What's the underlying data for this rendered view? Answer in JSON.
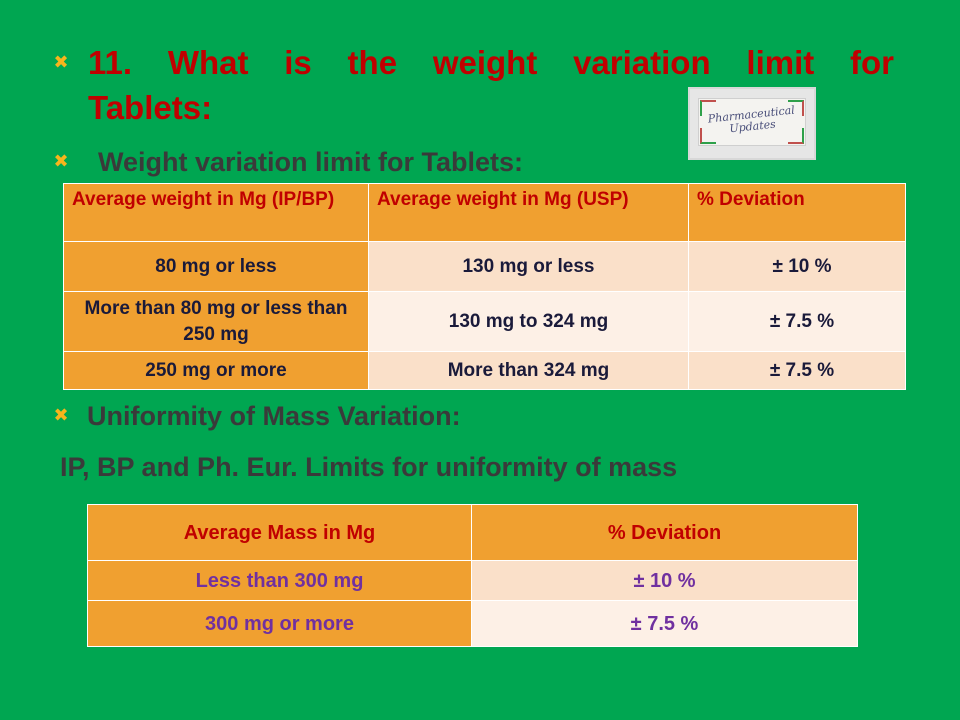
{
  "slide": {
    "title_line1": "11. What is the weight variation limit for",
    "title_line2": "Tablets:",
    "bullet_glyph": "✖",
    "heading_weight": "Weight variation limit for Tablets:",
    "heading_uniformity": "Uniformity of Mass Variation:",
    "subheading_limits": "IP, BP and Ph. Eur. Limits for uniformity of mass",
    "logo": {
      "line1": "Pharmaceutical",
      "line2": "Updates"
    },
    "colors": {
      "background": "#00a651",
      "title": "#c00000",
      "heading": "#3a3a3a",
      "bullet": "#f7b51c",
      "table_header": "#f0a030",
      "table_light": "#fae0c9",
      "table_lighter": "#fdf0e6",
      "table2_text": "#7030a0"
    }
  },
  "weight_table": {
    "headers": [
      "Average weight in Mg (IP/BP)",
      "Average weight in Mg (USP)",
      "% Deviation"
    ],
    "rows": [
      [
        "80 mg or less",
        "130 mg or less",
        "± 10 %"
      ],
      [
        "More than 80 mg or less than 250 mg",
        "130 mg to 324 mg",
        "± 7.5 %"
      ],
      [
        "250 mg or more",
        "More than 324 mg",
        "± 7.5 %"
      ]
    ]
  },
  "mass_table": {
    "headers": [
      "Average Mass in Mg",
      "% Deviation"
    ],
    "rows": [
      [
        "Less than 300 mg",
        "± 10 %"
      ],
      [
        "300 mg or more",
        "± 7.5 %"
      ]
    ]
  }
}
